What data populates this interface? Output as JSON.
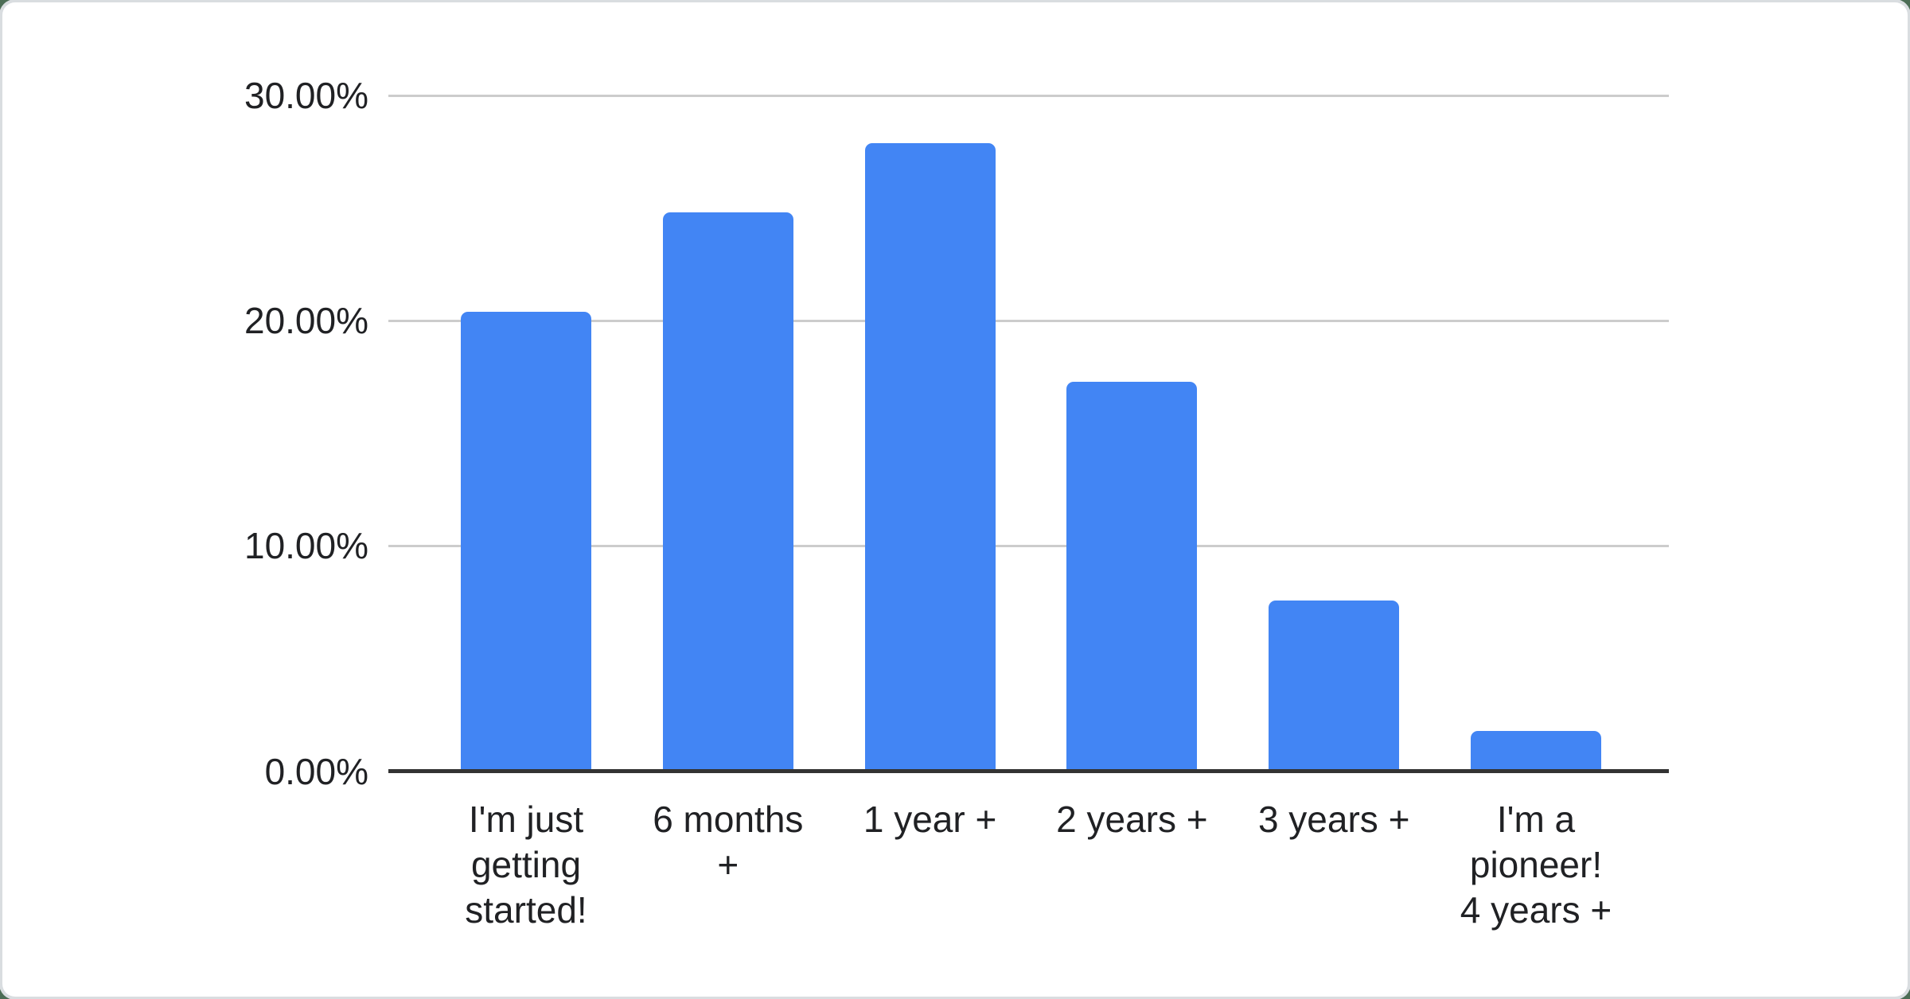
{
  "chart_data": {
    "type": "bar",
    "title": "",
    "xlabel": "",
    "ylabel": "",
    "legend": "none",
    "grid": "horizontal",
    "unit": "%",
    "ylim": [
      0,
      30
    ],
    "categories": [
      "I'm just getting started!",
      "6 months +",
      "1 year +",
      "2 years +",
      "3 years +",
      "I'm a pioneer! 4 years +"
    ],
    "category_lines": [
      [
        "I'm just",
        "getting",
        "started!"
      ],
      [
        "6 months",
        "+"
      ],
      [
        "1 year +"
      ],
      [
        "2 years +"
      ],
      [
        "3 years +"
      ],
      [
        "I'm a",
        "pioneer!",
        "4 years +"
      ]
    ],
    "values": [
      20.4,
      24.8,
      27.9,
      17.3,
      7.6,
      1.8
    ],
    "yticks": [
      {
        "value": 30,
        "label": "30.00%"
      },
      {
        "value": 20,
        "label": "20.00%"
      },
      {
        "value": 10,
        "label": "10.00%"
      },
      {
        "value": 0,
        "label": "0.00%"
      }
    ],
    "colors": {
      "bar": "#4285f4",
      "gridline": "#cccccc",
      "axis_line": "#333333",
      "tick_text": "#202124",
      "card_background": "#ffffff",
      "page_background": "#4c6d55",
      "card_edge": "#d9dde0"
    }
  }
}
